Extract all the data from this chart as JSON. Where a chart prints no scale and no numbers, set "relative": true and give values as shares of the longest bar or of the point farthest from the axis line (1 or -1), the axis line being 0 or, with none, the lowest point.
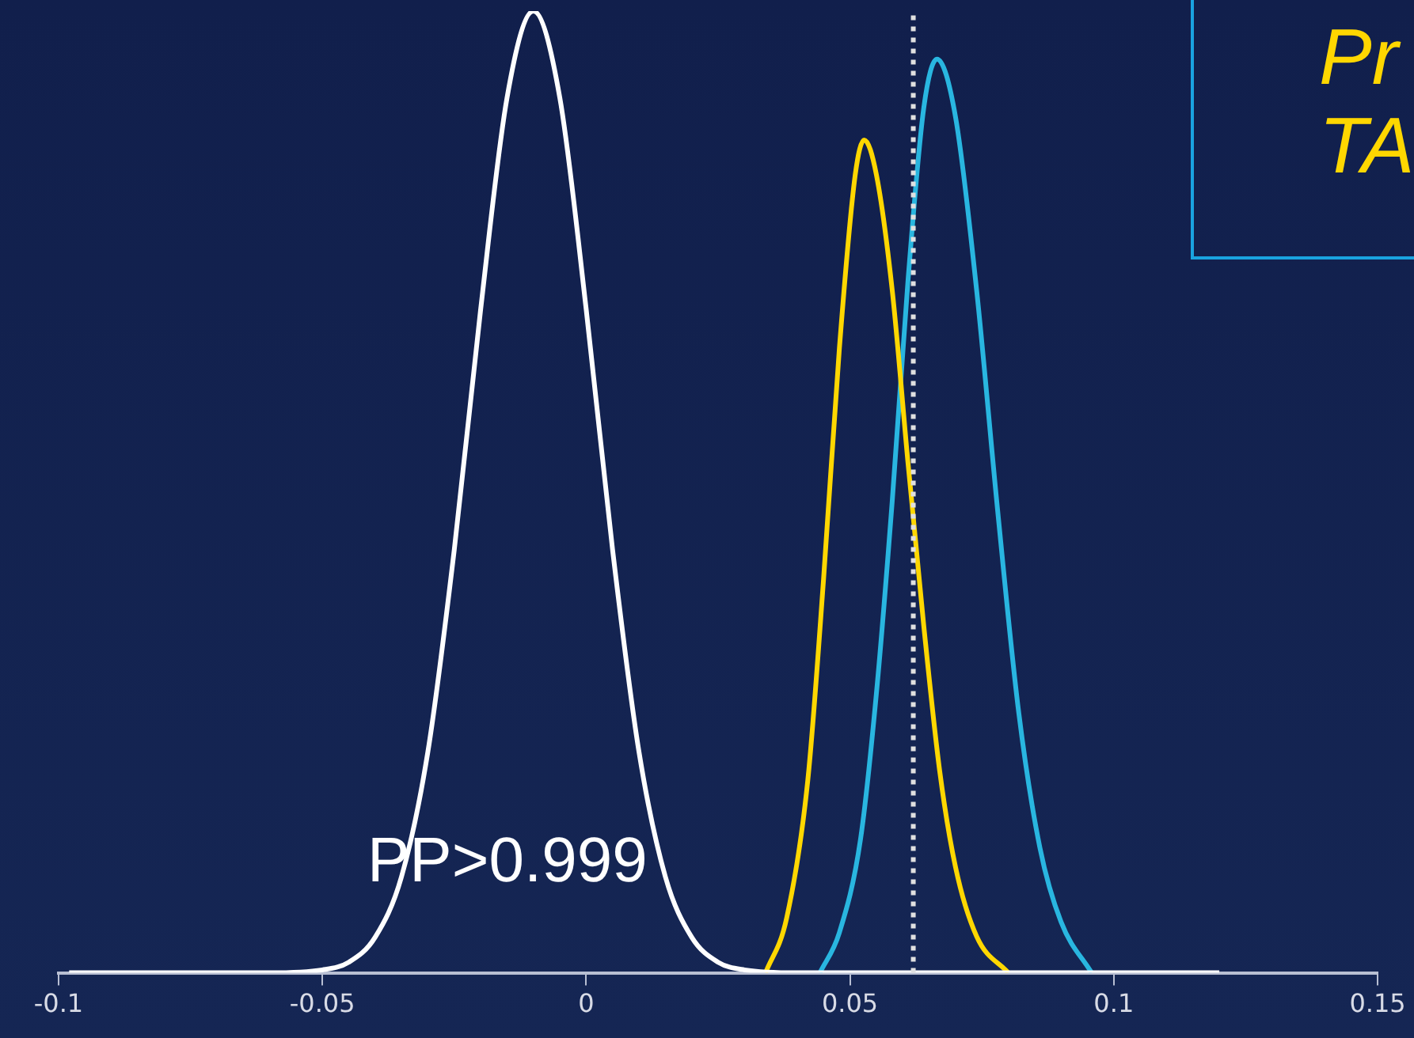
{
  "chart_data": {
    "type": "line",
    "relative": true,
    "xlim": [
      -0.1,
      0.15
    ],
    "xticks": [
      -0.1,
      -0.05,
      0,
      0.05,
      0.1,
      0.15
    ],
    "grid": false,
    "legend": false,
    "marker": "none",
    "line_style": "solid",
    "series": [
      {
        "color": "#ffffff",
        "x": [
          -0.098,
          -0.06,
          -0.05,
          -0.045,
          -0.04,
          -0.035,
          -0.03,
          -0.025,
          -0.02,
          -0.015,
          -0.01,
          -0.005,
          0,
          0.005,
          0.01,
          0.015,
          0.02,
          0.025,
          0.03,
          0.04,
          0.12
        ],
        "values": [
          0,
          0,
          0.003,
          0.011,
          0.037,
          0.1,
          0.23,
          0.44,
          0.69,
          0.91,
          1,
          0.91,
          0.69,
          0.44,
          0.23,
          0.1,
          0.037,
          0.011,
          0.003,
          0,
          0
        ]
      },
      {
        "color": "#ffd700",
        "x": [
          0.034,
          0.038,
          0.042,
          0.045,
          0.048,
          0.051,
          0.0527,
          0.055,
          0.058,
          0.061,
          0.064,
          0.067,
          0.07,
          0.074,
          0.08
        ],
        "values": [
          0,
          0.057,
          0.2,
          0.41,
          0.65,
          0.83,
          0.866,
          0.83,
          0.71,
          0.53,
          0.36,
          0.21,
          0.11,
          0.038,
          0
        ]
      },
      {
        "color": "#29b6e0",
        "x": [
          0.0443,
          0.048,
          0.052,
          0.055,
          0.058,
          0.061,
          0.064,
          0.0665,
          0.07,
          0.074,
          0.078,
          0.082,
          0.086,
          0.09,
          0.0958
        ],
        "values": [
          0,
          0.042,
          0.139,
          0.29,
          0.49,
          0.72,
          0.9,
          0.95,
          0.89,
          0.71,
          0.48,
          0.27,
          0.13,
          0.053,
          0
        ]
      }
    ],
    "ref_lines": [
      {
        "axis": "x",
        "value": 0.062,
        "color": "#e0e0e0",
        "line_style": "dotted"
      }
    ],
    "annotations": [
      "PP>0.999",
      "Pr",
      "TA"
    ]
  }
}
